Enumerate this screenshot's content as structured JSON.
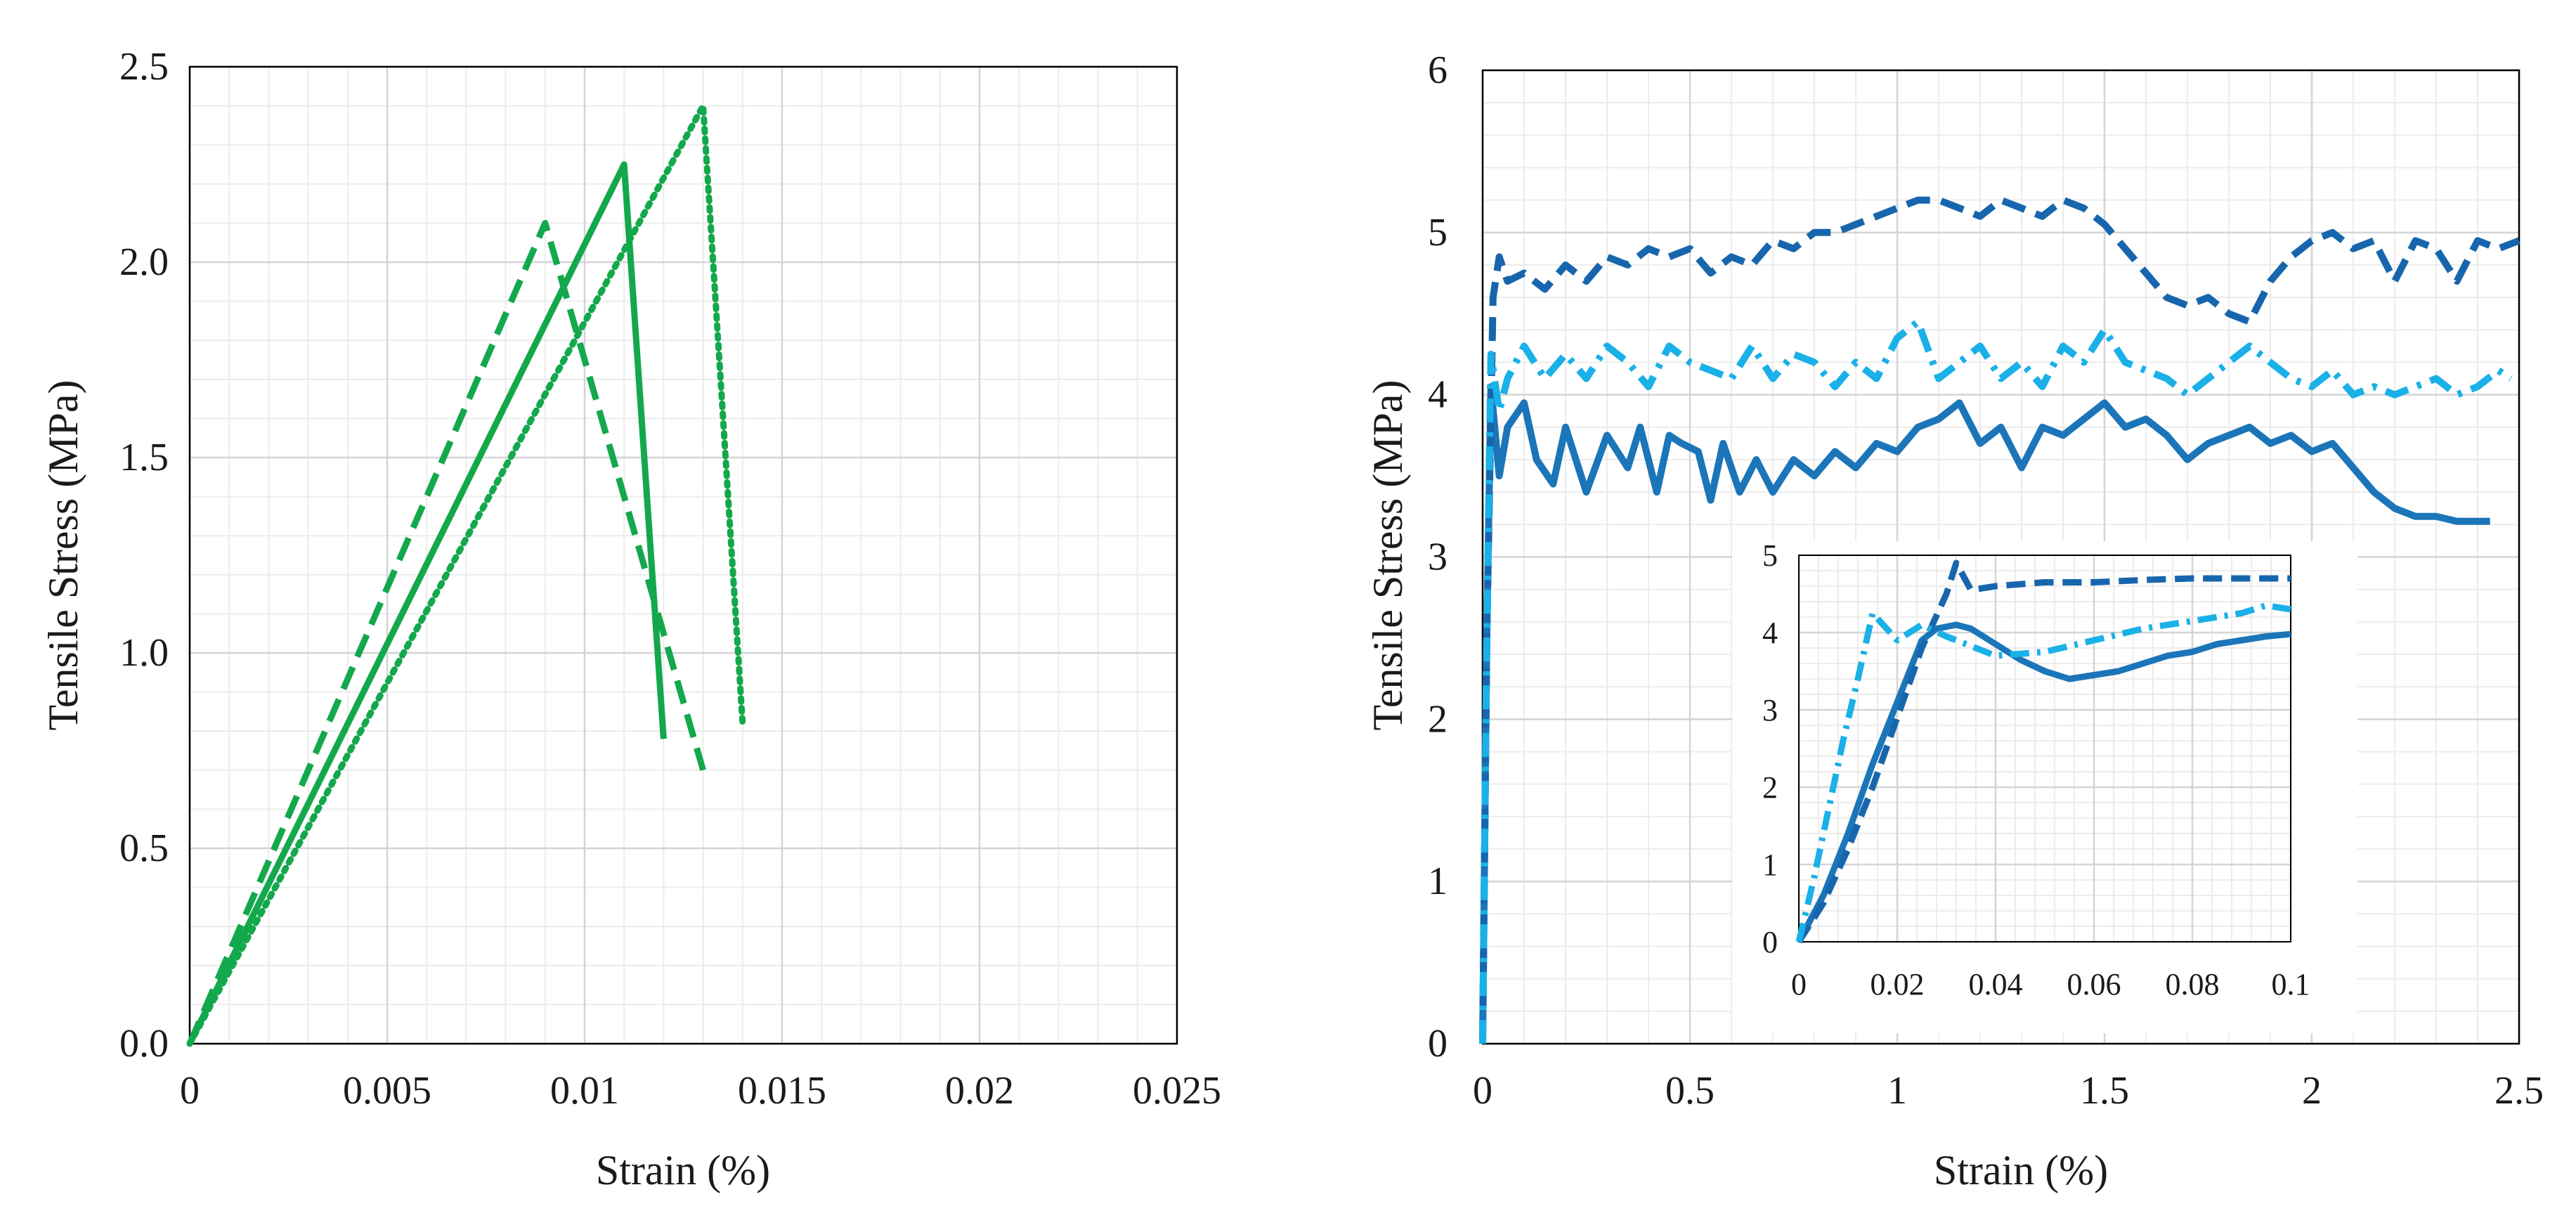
{
  "chart_data": [
    {
      "type": "line",
      "panel": "left",
      "title": "",
      "xlabel": "Strain (%)",
      "ylabel": "Tensile Stress (MPa)",
      "xlim": [
        0,
        0.025
      ],
      "ylim": [
        0,
        2.5
      ],
      "xticks": [
        0,
        0.005,
        0.01,
        0.015,
        0.02,
        0.025
      ],
      "xtick_labels": [
        "0",
        "0.005",
        "0.01",
        "0.015",
        "0.02",
        "0.025"
      ],
      "yticks": [
        0,
        0.5,
        1.0,
        1.5,
        2.0,
        2.5
      ],
      "ytick_labels": [
        "0.0",
        "0.5",
        "1.0",
        "1.5",
        "2.0",
        "2.5"
      ],
      "grid": true,
      "color": "#13a84c",
      "series": [
        {
          "name": "solid",
          "style": "solid",
          "x": [
            0,
            0.011,
            0.012
          ],
          "y": [
            0,
            2.25,
            0.78
          ]
        },
        {
          "name": "dashed",
          "style": "dashed",
          "x": [
            0,
            0.009,
            0.013
          ],
          "y": [
            0,
            2.1,
            0.7
          ]
        },
        {
          "name": "dotted",
          "style": "dotted",
          "x": [
            0,
            0.013,
            0.014
          ],
          "y": [
            0,
            2.4,
            0.82
          ]
        }
      ]
    },
    {
      "type": "line",
      "panel": "right",
      "title": "",
      "xlabel": "Strain (%)",
      "ylabel": "Tensile Stress (MPa)",
      "xlim": [
        0,
        2.5
      ],
      "ylim": [
        0,
        6
      ],
      "xticks": [
        0,
        0.5,
        1,
        1.5,
        2,
        2.5
      ],
      "xtick_labels": [
        "0",
        "0.5",
        "1",
        "1.5",
        "2",
        "2.5"
      ],
      "yticks": [
        0,
        1,
        2,
        3,
        4,
        5,
        6
      ],
      "ytick_labels": [
        "0",
        "1",
        "2",
        "3",
        "4",
        "5",
        "6"
      ],
      "grid": true,
      "series": [
        {
          "name": "solid",
          "style": "solid",
          "color": "#1b75b8",
          "x": [
            0,
            0.01,
            0.02,
            0.04,
            0.06,
            0.1,
            0.13,
            0.17,
            0.2,
            0.25,
            0.3,
            0.35,
            0.38,
            0.42,
            0.45,
            0.48,
            0.52,
            0.55,
            0.58,
            0.62,
            0.66,
            0.7,
            0.75,
            0.8,
            0.85,
            0.9,
            0.95,
            1.0,
            1.05,
            1.1,
            1.15,
            1.2,
            1.25,
            1.3,
            1.35,
            1.4,
            1.45,
            1.5,
            1.55,
            1.6,
            1.65,
            1.7,
            1.75,
            1.8,
            1.85,
            1.9,
            1.95,
            2.0,
            2.05,
            2.1,
            2.15,
            2.2,
            2.25,
            2.3,
            2.35,
            2.4,
            2.43
          ],
          "y": [
            0,
            2.5,
            4.05,
            3.5,
            3.8,
            3.95,
            3.6,
            3.45,
            3.8,
            3.4,
            3.75,
            3.55,
            3.8,
            3.4,
            3.75,
            3.7,
            3.65,
            3.35,
            3.7,
            3.4,
            3.6,
            3.4,
            3.6,
            3.5,
            3.65,
            3.55,
            3.7,
            3.65,
            3.8,
            3.85,
            3.95,
            3.7,
            3.8,
            3.55,
            3.8,
            3.75,
            3.85,
            3.95,
            3.8,
            3.85,
            3.75,
            3.6,
            3.7,
            3.75,
            3.8,
            3.7,
            3.75,
            3.65,
            3.7,
            3.55,
            3.4,
            3.3,
            3.25,
            3.25,
            3.22,
            3.22,
            3.22
          ]
        },
        {
          "name": "dashed",
          "style": "dashed",
          "color": "#1766ad",
          "x": [
            0,
            0.01,
            0.025,
            0.04,
            0.06,
            0.1,
            0.15,
            0.2,
            0.25,
            0.3,
            0.35,
            0.4,
            0.45,
            0.5,
            0.55,
            0.6,
            0.65,
            0.7,
            0.75,
            0.8,
            0.85,
            0.9,
            0.95,
            1.0,
            1.05,
            1.1,
            1.15,
            1.2,
            1.25,
            1.3,
            1.35,
            1.4,
            1.45,
            1.5,
            1.55,
            1.6,
            1.65,
            1.7,
            1.75,
            1.8,
            1.85,
            1.9,
            1.95,
            2.0,
            2.05,
            2.1,
            2.15,
            2.2,
            2.25,
            2.3,
            2.35,
            2.4,
            2.45,
            2.5
          ],
          "y": [
            0,
            2.5,
            4.6,
            4.85,
            4.7,
            4.75,
            4.65,
            4.8,
            4.7,
            4.85,
            4.8,
            4.9,
            4.85,
            4.9,
            4.75,
            4.85,
            4.8,
            4.95,
            4.9,
            5.0,
            5.0,
            5.05,
            5.1,
            5.15,
            5.2,
            5.2,
            5.15,
            5.1,
            5.2,
            5.15,
            5.1,
            5.2,
            5.15,
            5.05,
            4.9,
            4.75,
            4.6,
            4.55,
            4.6,
            4.5,
            4.45,
            4.7,
            4.85,
            4.95,
            5.0,
            4.9,
            4.95,
            4.7,
            4.95,
            4.9,
            4.7,
            4.95,
            4.9,
            4.95
          ]
        },
        {
          "name": "dash-dot",
          "style": "dashdot",
          "color": "#1ab0e8",
          "x": [
            0,
            0.01,
            0.02,
            0.04,
            0.06,
            0.1,
            0.15,
            0.2,
            0.25,
            0.3,
            0.35,
            0.4,
            0.45,
            0.5,
            0.55,
            0.6,
            0.65,
            0.7,
            0.75,
            0.8,
            0.85,
            0.9,
            0.95,
            1.0,
            1.05,
            1.1,
            1.15,
            1.2,
            1.25,
            1.3,
            1.35,
            1.4,
            1.45,
            1.5,
            1.55,
            1.6,
            1.65,
            1.7,
            1.75,
            1.8,
            1.85,
            1.9,
            1.95,
            2.0,
            2.05,
            2.1,
            2.15,
            2.2,
            2.25,
            2.3,
            2.35,
            2.4,
            2.45,
            2.48
          ],
          "y": [
            0,
            2.5,
            4.25,
            3.9,
            4.1,
            4.3,
            4.1,
            4.25,
            4.1,
            4.3,
            4.2,
            4.05,
            4.3,
            4.2,
            4.15,
            4.1,
            4.3,
            4.1,
            4.25,
            4.2,
            4.05,
            4.2,
            4.1,
            4.35,
            4.45,
            4.1,
            4.2,
            4.3,
            4.1,
            4.2,
            4.05,
            4.3,
            4.2,
            4.4,
            4.2,
            4.15,
            4.1,
            4.0,
            4.1,
            4.2,
            4.3,
            4.2,
            4.1,
            4.05,
            4.15,
            4.0,
            4.05,
            4.0,
            4.05,
            4.1,
            4.0,
            4.05,
            4.15,
            4.1
          ]
        }
      ],
      "inset": {
        "xlim": [
          0,
          0.1
        ],
        "ylim": [
          0,
          5
        ],
        "xticks": [
          0,
          0.02,
          0.04,
          0.06,
          0.08,
          0.1
        ],
        "xtick_labels": [
          "0",
          "0.02",
          "0.04",
          "0.06",
          "0.08",
          "0.1"
        ],
        "yticks": [
          0,
          1,
          2,
          3,
          4,
          5
        ],
        "ytick_labels": [
          "0",
          "1",
          "2",
          "3",
          "4",
          "5"
        ],
        "grid": true,
        "series": [
          {
            "name": "solid",
            "style": "solid",
            "color": "#1b75b8",
            "x": [
              0,
              0.005,
              0.01,
              0.015,
              0.02,
              0.025,
              0.028,
              0.032,
              0.035,
              0.04,
              0.045,
              0.05,
              0.055,
              0.06,
              0.065,
              0.07,
              0.075,
              0.08,
              0.085,
              0.09,
              0.095,
              0.1
            ],
            "y": [
              0,
              0.6,
              1.4,
              2.3,
              3.1,
              3.9,
              4.05,
              4.1,
              4.05,
              3.85,
              3.65,
              3.5,
              3.4,
              3.45,
              3.5,
              3.6,
              3.7,
              3.75,
              3.85,
              3.9,
              3.95,
              3.98
            ]
          },
          {
            "name": "dashed",
            "style": "dashed",
            "color": "#1766ad",
            "x": [
              0,
              0.005,
              0.01,
              0.015,
              0.02,
              0.025,
              0.03,
              0.032,
              0.035,
              0.04,
              0.05,
              0.06,
              0.07,
              0.08,
              0.09,
              0.1
            ],
            "y": [
              0,
              0.5,
              1.2,
              2.0,
              2.9,
              3.8,
              4.5,
              4.9,
              4.55,
              4.6,
              4.65,
              4.65,
              4.68,
              4.7,
              4.7,
              4.7
            ]
          },
          {
            "name": "dash-dot",
            "style": "dashdot",
            "color": "#1ab0e8",
            "x": [
              0,
              0.003,
              0.006,
              0.009,
              0.012,
              0.015,
              0.02,
              0.025,
              0.03,
              0.04,
              0.05,
              0.06,
              0.07,
              0.08,
              0.09,
              0.095,
              0.1
            ],
            "y": [
              0,
              0.8,
              1.7,
              2.6,
              3.4,
              4.25,
              3.9,
              4.1,
              3.95,
              3.7,
              3.75,
              3.9,
              4.05,
              4.15,
              4.25,
              4.35,
              4.3
            ]
          }
        ]
      }
    }
  ]
}
